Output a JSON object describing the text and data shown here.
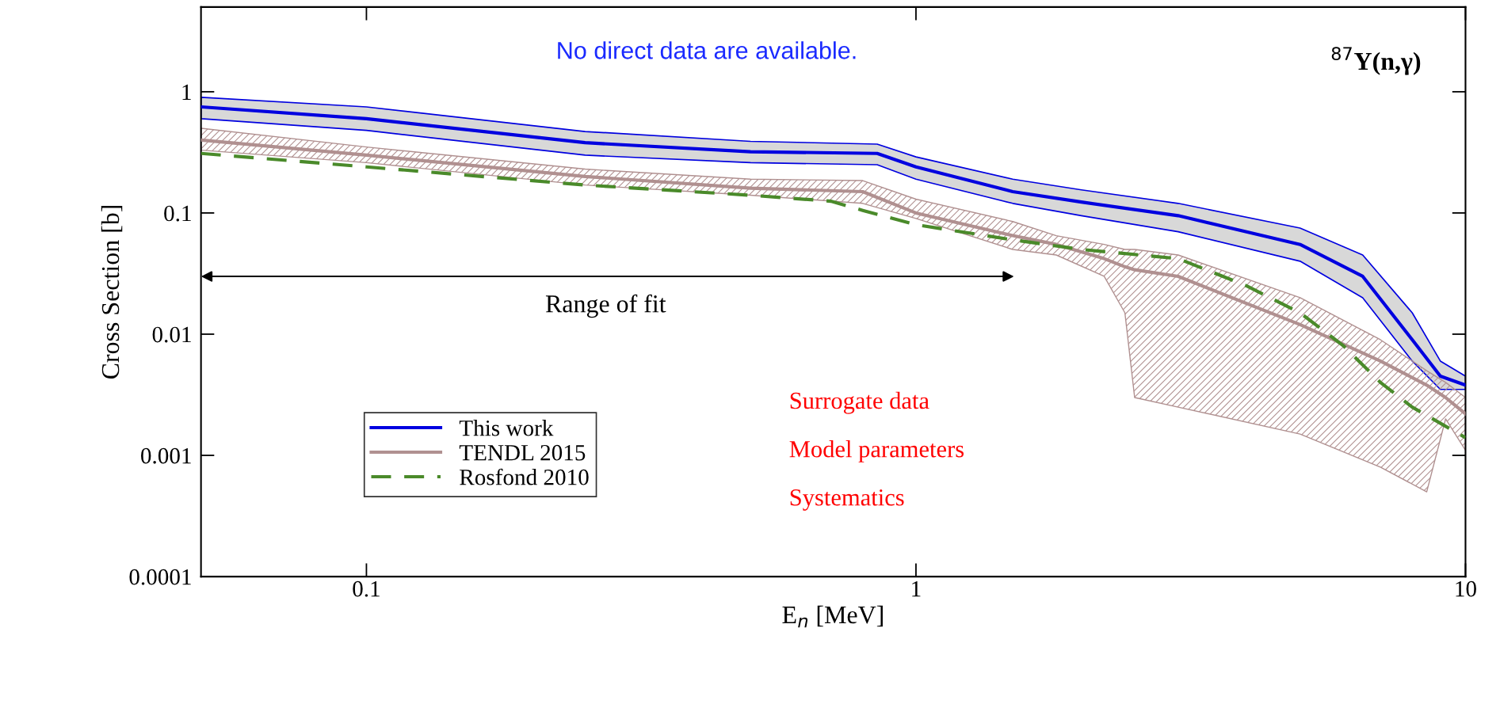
{
  "chart_data": {
    "type": "line",
    "xlabel": "E$_{n}$ [MeV]",
    "ylabel": "Cross Section [b]",
    "log": "xy",
    "xlim": [
      0.05,
      10
    ],
    "ylim": [
      0.0001,
      5
    ],
    "xticks": [
      0.1,
      1,
      10
    ],
    "yticks": [
      0.0001,
      0.001,
      0.01,
      0.1,
      1
    ],
    "legend": "bottom left",
    "grid": false,
    "series": [
      {
        "name": "This work",
        "color": "#0000e0",
        "line_style": "solid",
        "x": [
          0.05,
          0.1,
          0.25,
          0.5,
          0.85,
          1.0,
          1.5,
          2,
          3,
          5,
          6.5,
          8,
          9,
          10
        ],
        "values": [
          0.75,
          0.6,
          0.38,
          0.32,
          0.31,
          0.24,
          0.15,
          0.123,
          0.095,
          0.055,
          0.03,
          0.009,
          0.0045,
          0.0038
        ],
        "lower": [
          0.6,
          0.48,
          0.3,
          0.26,
          0.25,
          0.19,
          0.12,
          0.095,
          0.07,
          0.04,
          0.02,
          0.006,
          0.0035,
          0.0035
        ],
        "upper": [
          0.9,
          0.75,
          0.47,
          0.39,
          0.37,
          0.29,
          0.19,
          0.155,
          0.12,
          0.075,
          0.045,
          0.015,
          0.006,
          0.0045
        ]
      },
      {
        "name": "TENDL 2015",
        "color": "#b09090",
        "line_style": "solid",
        "x": [
          0.05,
          0.1,
          0.25,
          0.5,
          0.8,
          1.0,
          1.5,
          1.8,
          2.2,
          2.4,
          2.5,
          3,
          5,
          7,
          8.5,
          9.2,
          10
        ],
        "values": [
          0.4,
          0.3,
          0.2,
          0.16,
          0.15,
          0.1,
          0.065,
          0.055,
          0.042,
          0.036,
          0.034,
          0.03,
          0.012,
          0.006,
          0.0038,
          0.003,
          0.0022
        ],
        "lower": [
          0.33,
          0.26,
          0.17,
          0.14,
          0.12,
          0.09,
          0.05,
          0.045,
          0.03,
          0.015,
          0.003,
          0.0025,
          0.0015,
          0.0008,
          0.0005,
          0.002,
          0.0011
        ],
        "upper": [
          0.5,
          0.35,
          0.23,
          0.19,
          0.185,
          0.13,
          0.085,
          0.065,
          0.055,
          0.05,
          0.05,
          0.045,
          0.02,
          0.009,
          0.005,
          0.004,
          0.003
        ]
      },
      {
        "name": "Rosfond 2010",
        "color": "#4a8a2a",
        "line_style": "dashed",
        "x": [
          0.05,
          0.1,
          0.25,
          0.5,
          0.7,
          0.8,
          1.0,
          1.5,
          2,
          3,
          4,
          5,
          6,
          7,
          8,
          10
        ],
        "values": [
          0.31,
          0.24,
          0.17,
          0.14,
          0.125,
          0.105,
          0.08,
          0.06,
          0.05,
          0.042,
          0.025,
          0.015,
          0.008,
          0.004,
          0.0025,
          0.0014
        ]
      }
    ],
    "annotations": [
      "Range of fit",
      "No direct data are available.",
      "$^{87}$Y(n,γ)",
      "Surrogate data",
      "Model parameters",
      "Systematics"
    ]
  }
}
